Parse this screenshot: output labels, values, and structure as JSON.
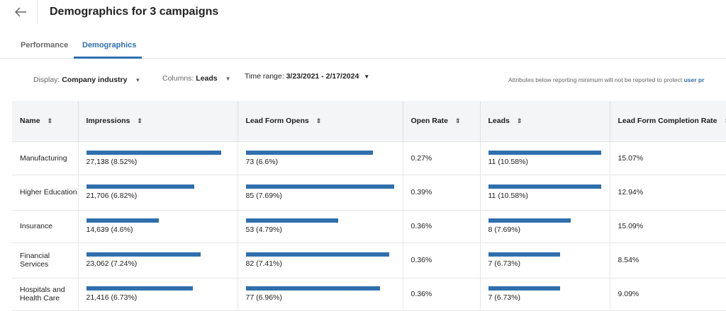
{
  "header": {
    "title": "Demographics for 3 campaigns",
    "back_icon": "arrow-left-icon"
  },
  "tabs": [
    {
      "label": "Performance",
      "active": false
    },
    {
      "label": "Demographics",
      "active": true
    }
  ],
  "filters": {
    "display": {
      "label": "Display:",
      "value": "Company industry"
    },
    "columns": {
      "label": "Columns:",
      "value": "Leads"
    },
    "time_range": {
      "label": "Time range:",
      "value": "3/23/2021 - 2/17/2024"
    },
    "note": "Attributes below reporting minimum will not be reported to protect ",
    "note_link": "user pr"
  },
  "colors": {
    "accent": "#2f6fad",
    "header_bg": "#f4f5f7"
  },
  "table": {
    "headers": [
      "Name",
      "Impressions",
      "Lead Form Opens",
      "Open Rate",
      "Leads",
      "Lead Form Completion Rate"
    ],
    "rows": [
      {
        "name": "Manufacturing",
        "impressions": 27138,
        "impressions_text": "27,138 (8.52%)",
        "opens": 73,
        "opens_text": "73 (6.6%)",
        "open_rate": "0.27%",
        "leads": 11,
        "leads_text": "11 (10.58%)",
        "completion": "15.07%"
      },
      {
        "name": "Higher Education",
        "impressions": 21706,
        "impressions_text": "21,706 (6.82%)",
        "opens": 85,
        "opens_text": "85 (7.69%)",
        "open_rate": "0.39%",
        "leads": 11,
        "leads_text": "11 (10.58%)",
        "completion": "12.94%"
      },
      {
        "name": "Insurance",
        "impressions": 14639,
        "impressions_text": "14,639 (4.6%)",
        "opens": 53,
        "opens_text": "53 (4.79%)",
        "open_rate": "0.36%",
        "leads": 8,
        "leads_text": "8 (7.69%)",
        "completion": "15.09%"
      },
      {
        "name": "Financial Services",
        "impressions": 23062,
        "impressions_text": "23,062 (7.24%)",
        "opens": 82,
        "opens_text": "82 (7.41%)",
        "open_rate": "0.36%",
        "leads": 7,
        "leads_text": "7 (6.73%)",
        "completion": "8.54%"
      },
      {
        "name": "Hospitals and Health Care",
        "impressions": 21416,
        "impressions_text": "21,416 (6.73%)",
        "opens": 77,
        "opens_text": "77 (6.96%)",
        "open_rate": "0.36%",
        "leads": 7,
        "leads_text": "7 (6.73%)",
        "completion": "9.09%"
      }
    ]
  }
}
